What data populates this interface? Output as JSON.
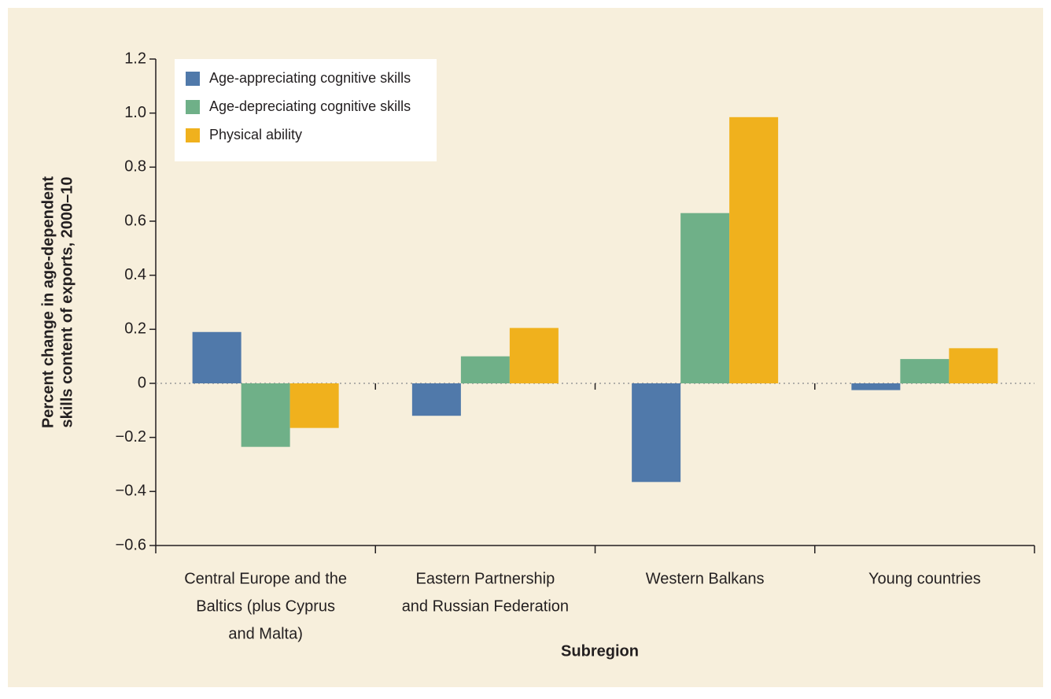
{
  "chart_data": {
    "type": "bar",
    "ylabel": [
      "Percent change in age-dependent",
      "skills content of exports, 2000–10"
    ],
    "xlabel": "Subregion",
    "categories": [
      [
        "Central Europe and the",
        "Baltics (plus Cyprus",
        "and Malta)"
      ],
      [
        "Eastern Partnership",
        "and Russian Federation"
      ],
      [
        "Western Balkans"
      ],
      [
        "Young countries"
      ]
    ],
    "series": [
      {
        "name": "Age-appreciating cognitive skills",
        "color": "#5079aa",
        "values": [
          0.19,
          -0.12,
          -0.365,
          -0.025
        ]
      },
      {
        "name": "Age-depreciating cognitive skills",
        "color": "#6fb088",
        "values": [
          -0.235,
          0.1,
          0.63,
          0.09
        ]
      },
      {
        "name": "Physical ability",
        "color": "#f0b11d",
        "values": [
          -0.165,
          0.205,
          0.985,
          0.13
        ]
      }
    ],
    "ylim": [
      -0.6,
      1.2
    ],
    "yticks": [
      {
        "value": -0.6,
        "label": "−0.6"
      },
      {
        "value": -0.4,
        "label": "−0.4"
      },
      {
        "value": -0.2,
        "label": "−0.2"
      },
      0,
      0.2,
      0.4,
      0.6,
      0.8,
      {
        "value": 1.0,
        "label": "1.0"
      },
      1.2
    ],
    "legend": "top-left",
    "grid": false
  }
}
